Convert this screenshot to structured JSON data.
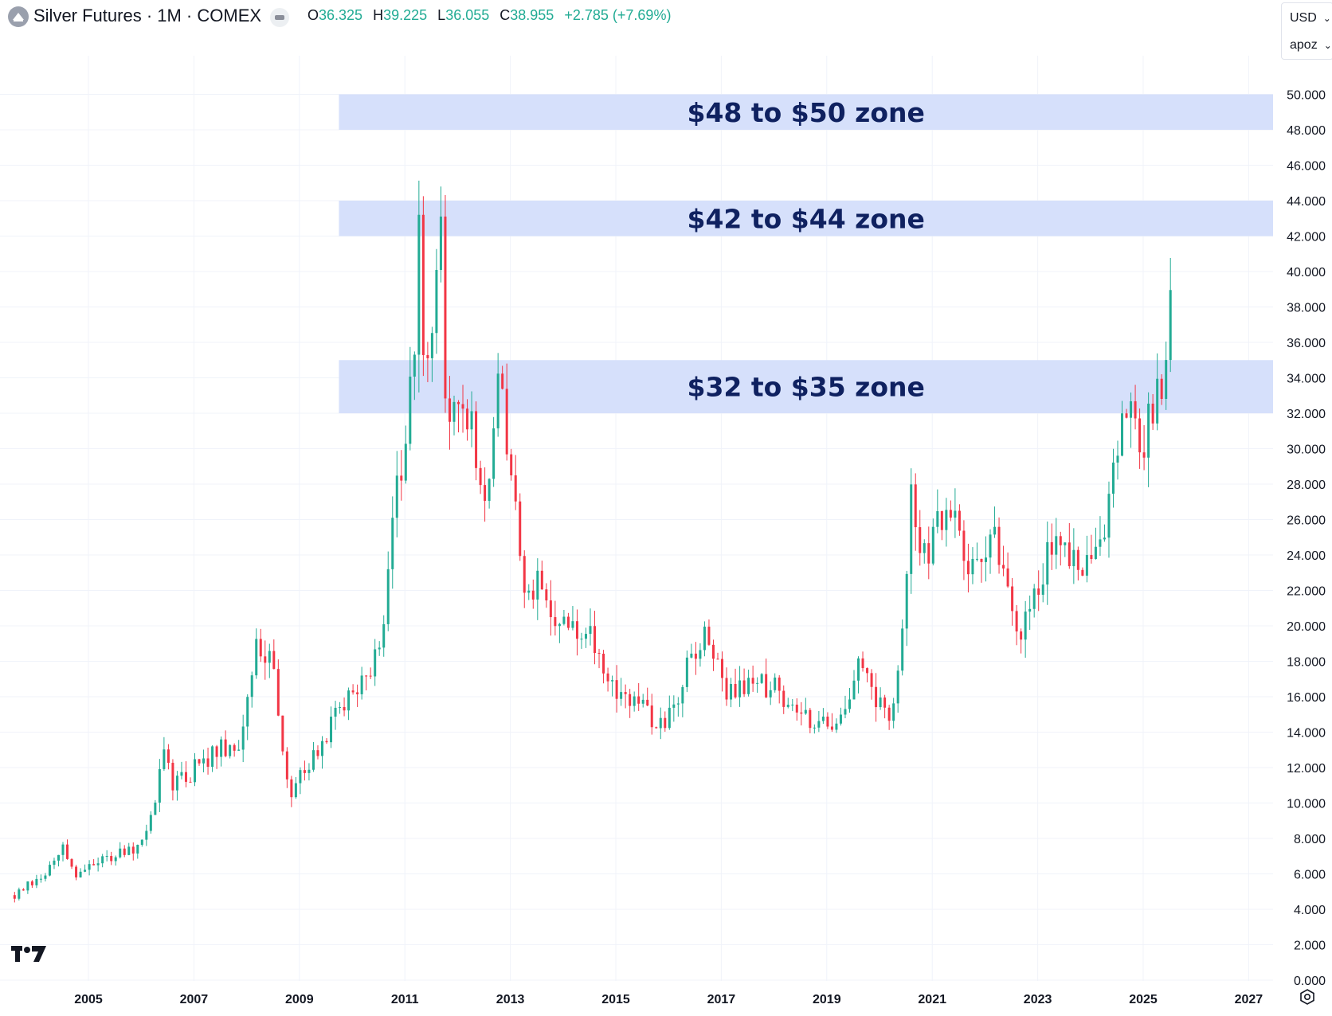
{
  "header": {
    "symbol_title": "Silver Futures · 1M · COMEX",
    "ohlc": {
      "open_label": "O",
      "open_value": "36.325",
      "high_label": "H",
      "high_value": "39.225",
      "low_label": "L",
      "low_value": "36.055",
      "close_label": "C",
      "close_value": "38.955",
      "change": "+2.785 (+7.69%)"
    },
    "up_color": "#22ab94",
    "down_color": "#f23645"
  },
  "scale_controls": {
    "currency": "USD",
    "unit": "apoz"
  },
  "icons": {
    "symbol": "silver-futures-logo-icon",
    "status": "market-status-icon",
    "brand": "tradingview-logo-icon",
    "settings": "settings-icon"
  },
  "chart_data": {
    "type": "candlestick",
    "ylim": [
      0,
      52
    ],
    "y_ticks": [
      "50.000",
      "48.000",
      "46.000",
      "44.000",
      "42.000",
      "40.000",
      "38.000",
      "36.000",
      "34.000",
      "32.000",
      "30.000",
      "28.000",
      "26.000",
      "24.000",
      "22.000",
      "20.000",
      "18.000",
      "16.000",
      "14.000",
      "12.000",
      "10.000",
      "8.000",
      "6.000",
      "4.000",
      "2.000",
      "0.000"
    ],
    "x_ticks": [
      "2005",
      "2007",
      "2009",
      "2011",
      "2013",
      "2015",
      "2017",
      "2019",
      "2021",
      "2023",
      "2025",
      "2027"
    ],
    "x_range": [
      2003.4,
      2028.2
    ],
    "grid": true,
    "zones": [
      {
        "label": "$48 to $50 zone",
        "low": 48,
        "high": 50,
        "x_start": 2009.75
      },
      {
        "label": "$42 to $44 zone",
        "low": 42,
        "high": 44,
        "x_start": 2009.75
      },
      {
        "label": "$32 to $35 zone",
        "low": 32,
        "high": 35,
        "x_start": 2009.75
      }
    ],
    "zone_color": "#d6e0fb",
    "zone_label_color": "#0f2160",
    "series": [
      {
        "anchors": [
          {
            "x": 2003.6,
            "y": 4.8
          },
          {
            "x": 2004.3,
            "y": 6.3
          },
          {
            "x": 2004.5,
            "y": 7.8
          },
          {
            "x": 2004.7,
            "y": 6.0
          },
          {
            "x": 2005.5,
            "y": 7.0
          },
          {
            "x": 2006.0,
            "y": 7.5
          },
          {
            "x": 2006.3,
            "y": 10.5
          },
          {
            "x": 2006.4,
            "y": 13.5
          },
          {
            "x": 2006.6,
            "y": 11.0
          },
          {
            "x": 2007.5,
            "y": 13.0
          },
          {
            "x": 2007.8,
            "y": 12.5
          },
          {
            "x": 2008.2,
            "y": 19.5
          },
          {
            "x": 2008.5,
            "y": 17.5
          },
          {
            "x": 2008.8,
            "y": 10.5
          },
          {
            "x": 2009.0,
            "y": 11.5
          },
          {
            "x": 2009.5,
            "y": 14.0
          },
          {
            "x": 2010.0,
            "y": 16.5
          },
          {
            "x": 2010.5,
            "y": 18.5
          },
          {
            "x": 2010.9,
            "y": 28.5
          },
          {
            "x": 2011.2,
            "y": 35.0
          },
          {
            "x": 2011.3,
            "y": 48.5
          },
          {
            "x": 2011.35,
            "y": 34.0
          },
          {
            "x": 2011.7,
            "y": 42.0
          },
          {
            "x": 2011.8,
            "y": 30.0
          },
          {
            "x": 2012.1,
            "y": 33.5
          },
          {
            "x": 2012.5,
            "y": 27.0
          },
          {
            "x": 2012.8,
            "y": 34.0
          },
          {
            "x": 2013.0,
            "y": 29.5
          },
          {
            "x": 2013.25,
            "y": 23.0
          },
          {
            "x": 2013.6,
            "y": 22.0
          },
          {
            "x": 2014.0,
            "y": 20.0
          },
          {
            "x": 2014.5,
            "y": 19.5
          },
          {
            "x": 2015.0,
            "y": 16.0
          },
          {
            "x": 2015.5,
            "y": 15.5
          },
          {
            "x": 2015.9,
            "y": 14.0
          },
          {
            "x": 2016.5,
            "y": 18.5
          },
          {
            "x": 2016.8,
            "y": 19.5
          },
          {
            "x": 2017.0,
            "y": 16.5
          },
          {
            "x": 2017.5,
            "y": 16.5
          },
          {
            "x": 2018.0,
            "y": 16.5
          },
          {
            "x": 2018.5,
            "y": 15.0
          },
          {
            "x": 2018.9,
            "y": 14.5
          },
          {
            "x": 2019.3,
            "y": 15.0
          },
          {
            "x": 2019.6,
            "y": 17.5
          },
          {
            "x": 2020.2,
            "y": 14.5
          },
          {
            "x": 2020.4,
            "y": 17.5
          },
          {
            "x": 2020.6,
            "y": 27.0
          },
          {
            "x": 2020.9,
            "y": 23.0
          },
          {
            "x": 2021.1,
            "y": 27.0
          },
          {
            "x": 2021.5,
            "y": 25.0
          },
          {
            "x": 2021.8,
            "y": 23.0
          },
          {
            "x": 2022.2,
            "y": 24.5
          },
          {
            "x": 2022.6,
            "y": 19.0
          },
          {
            "x": 2022.9,
            "y": 21.5
          },
          {
            "x": 2023.3,
            "y": 25.0
          },
          {
            "x": 2023.8,
            "y": 23.0
          },
          {
            "x": 2024.2,
            "y": 24.5
          },
          {
            "x": 2024.4,
            "y": 29.5
          },
          {
            "x": 2024.8,
            "y": 32.5
          },
          {
            "x": 2025.0,
            "y": 30.0
          },
          {
            "x": 2025.3,
            "y": 33.5
          },
          {
            "x": 2025.5,
            "y": 36.0
          },
          {
            "x": 2025.55,
            "y": 38.9
          }
        ]
      }
    ]
  }
}
